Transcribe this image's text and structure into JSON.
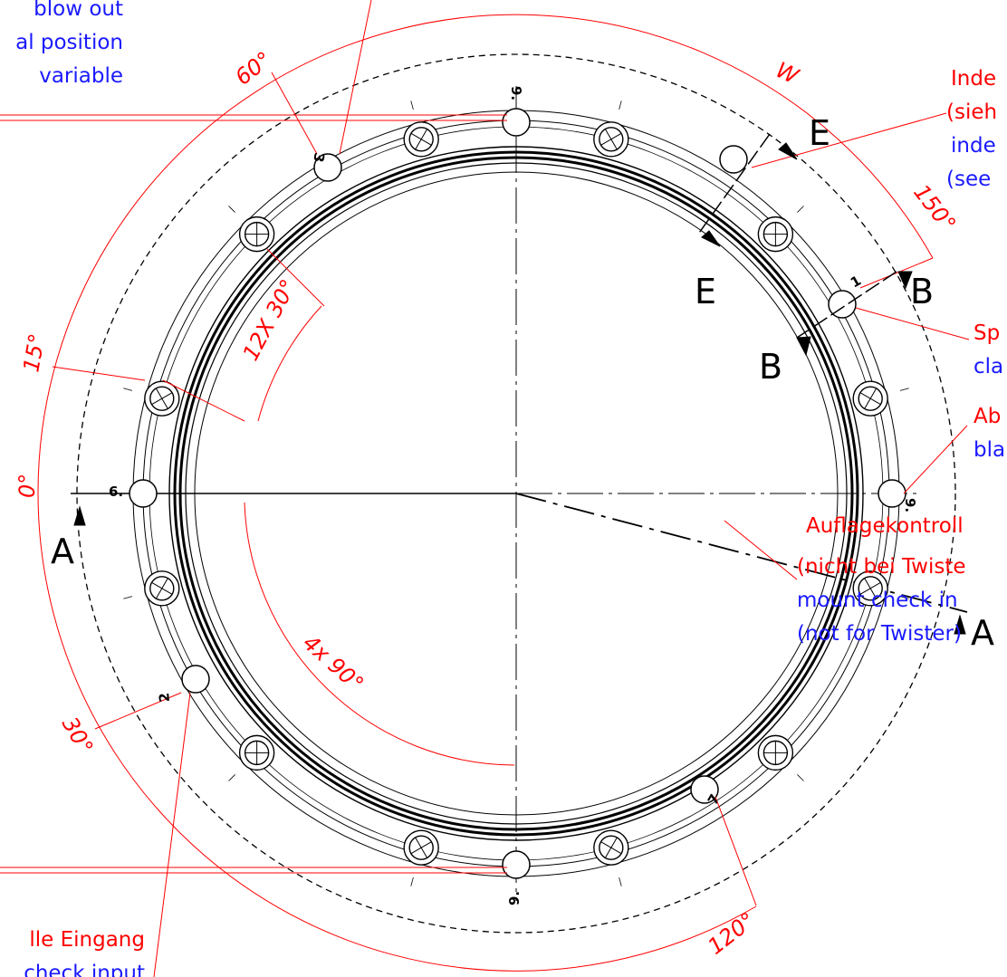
{
  "labels": {
    "top_left_1": "blow out",
    "top_left_2": "al position",
    "top_left_3": "variable",
    "right_1_de": "Inde",
    "right_2_de": "(sieh",
    "right_3_en": "inde",
    "right_4_en": "(see",
    "right_5_de": "Sp",
    "right_6_en": "cla",
    "right_7_de": "Ab",
    "right_8_en": "bla",
    "bottom_right_1": "Auflagekontroll",
    "bottom_right_2": "(nicht bei Twiste",
    "bottom_right_3": "mount check in",
    "bottom_right_4": "(not for Twister)",
    "bottom_left_1": "lle Eingang",
    "bottom_left_2": "check input"
  },
  "angles": {
    "a60": "60°",
    "a150": "150°",
    "a15": "15°",
    "a0": "0°",
    "a30": "30°",
    "a120": "120°",
    "a12x30": "12X 30°",
    "a4x90": "4x 90°",
    "w": "W"
  },
  "sections": {
    "A1": "A",
    "A2": "A",
    "B1": "B",
    "B2": "B",
    "E1": "E",
    "E2": "E"
  },
  "hole_numbers": {
    "top": "9.",
    "left": "6.",
    "right": "9.",
    "bottom": "9.",
    "n3": "3",
    "n2": "2",
    "n1": "1",
    "n7": "7"
  },
  "colors": {
    "annotation_red": "#ff0000",
    "annotation_blue": "#1a1aff",
    "geometry": "#000000"
  }
}
